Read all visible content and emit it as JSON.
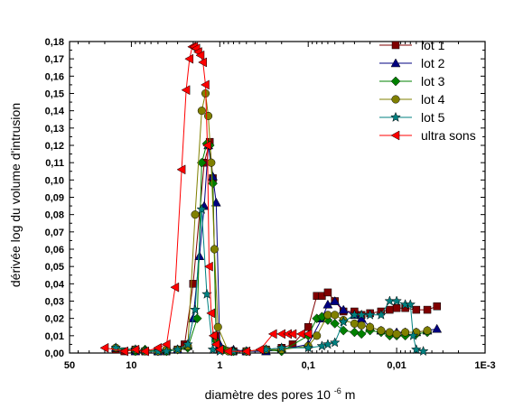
{
  "chart_data": {
    "type": "line",
    "xlabel": "diamètre des pores 10",
    "xlabel_sup": "-6",
    "xlabel_unit": " m",
    "ylabel": "dérivée log du volume d'intrusion",
    "x_scale": "log",
    "x_reversed": true,
    "xlim": [
      50,
      0.001
    ],
    "ylim": [
      0,
      0.18
    ],
    "x_ticks": [
      {
        "value": 50,
        "label": "50"
      },
      {
        "value": 10,
        "label": "10"
      },
      {
        "value": 1,
        "label": "1"
      },
      {
        "value": 0.1,
        "label": "0,1"
      },
      {
        "value": 0.01,
        "label": "0,01"
      },
      {
        "value": 0.001,
        "label": "1E-3"
      }
    ],
    "y_ticks": [
      "0,00",
      "0,01",
      "0,02",
      "0,03",
      "0,04",
      "0,05",
      "0,06",
      "0,07",
      "0,08",
      "0,09",
      "0,10",
      "0,11",
      "0,12",
      "0,13",
      "0,14",
      "0,15",
      "0,16",
      "0,17",
      "0,18"
    ],
    "grid": false,
    "legend_position": "top-right",
    "series": [
      {
        "name": "lot 1",
        "color": "#800000",
        "marker": "square",
        "x": [
          15,
          12,
          9,
          7,
          5,
          4,
          3,
          2.5,
          2,
          1.5,
          1.3,
          1.2,
          1.1,
          1.0,
          0.7,
          0.5,
          0.3,
          0.2,
          0.15,
          0.1,
          0.08,
          0.07,
          0.06,
          0.05,
          0.04,
          0.03,
          0.025,
          0.02,
          0.015,
          0.012,
          0.01,
          0.008,
          0.006,
          0.0045,
          0.0035
        ],
        "y": [
          0.002,
          0.001,
          0.002,
          0.001,
          0.001,
          0.001,
          0.002,
          0.005,
          0.04,
          0.11,
          0.122,
          0.101,
          0.01,
          0.002,
          0.001,
          0.001,
          0.002,
          0.003,
          0.005,
          0.015,
          0.033,
          0.033,
          0.035,
          0.03,
          0.024,
          0.024,
          0.022,
          0.023,
          0.024,
          0.025,
          0.026,
          0.026,
          0.025,
          0.025,
          0.027
        ]
      },
      {
        "name": "lot 2",
        "color": "#000080",
        "marker": "triangle-up",
        "x": [
          15,
          9,
          7,
          5,
          4,
          3,
          2.3,
          2,
          1.7,
          1.5,
          1.35,
          1.2,
          1.1,
          1.0,
          0.7,
          0.5,
          0.3,
          0.2,
          0.1,
          0.07,
          0.06,
          0.05,
          0.04,
          0.03,
          0.025,
          0.02,
          0.015,
          0.01,
          0.008,
          0.006,
          0.0045,
          0.0035
        ],
        "y": [
          0.003,
          0.001,
          0.002,
          0.001,
          0.002,
          0.002,
          0.004,
          0.02,
          0.056,
          0.085,
          0.12,
          0.102,
          0.087,
          0.005,
          0.002,
          0.001,
          0.001,
          0.002,
          0.005,
          0.02,
          0.028,
          0.03,
          0.025,
          0.022,
          0.02,
          0.015,
          0.013,
          0.012,
          0.012,
          0.012,
          0.013,
          0.014
        ]
      },
      {
        "name": "lot 3",
        "color": "#008000",
        "marker": "diamond",
        "x": [
          15,
          9,
          7,
          5,
          4,
          3,
          2.3,
          1.8,
          1.6,
          1.4,
          1.3,
          1.2,
          1.1,
          0.9,
          0.7,
          0.5,
          0.3,
          0.2,
          0.1,
          0.08,
          0.07,
          0.06,
          0.05,
          0.04,
          0.03,
          0.025,
          0.02,
          0.015,
          0.012,
          0.01,
          0.008,
          0.006,
          0.0045
        ],
        "y": [
          0.003,
          0.001,
          0.002,
          0.001,
          0.001,
          0.002,
          0.003,
          0.02,
          0.11,
          0.121,
          0.12,
          0.098,
          0.007,
          0.002,
          0.001,
          0.001,
          0.002,
          0.001,
          0.01,
          0.02,
          0.021,
          0.019,
          0.017,
          0.013,
          0.012,
          0.011,
          0.013,
          0.012,
          0.01,
          0.01,
          0.01,
          0.011,
          0.012
        ]
      },
      {
        "name": "lot 4",
        "color": "#808000",
        "marker": "circle",
        "x": [
          15,
          9,
          7,
          5,
          4,
          3,
          2.3,
          1.9,
          1.6,
          1.45,
          1.35,
          1.25,
          1.15,
          1.05,
          0.8,
          0.5,
          0.3,
          0.2,
          0.1,
          0.08,
          0.06,
          0.05,
          0.04,
          0.03,
          0.025,
          0.02,
          0.015,
          0.012,
          0.01,
          0.008,
          0.006,
          0.0045
        ],
        "y": [
          0.003,
          0.002,
          0.001,
          0.001,
          0.002,
          0.002,
          0.004,
          0.08,
          0.14,
          0.15,
          0.137,
          0.11,
          0.06,
          0.015,
          0.001,
          0.001,
          0.002,
          0.002,
          0.004,
          0.01,
          0.022,
          0.022,
          0.019,
          0.017,
          0.016,
          0.015,
          0.013,
          0.012,
          0.011,
          0.012,
          0.012,
          0.013
        ]
      },
      {
        "name": "lot 5",
        "color": "#008080",
        "marker": "star",
        "x": [
          15,
          9,
          7,
          5,
          4,
          3,
          2.3,
          1.9,
          1.6,
          1.4,
          1.2,
          1.0,
          0.7,
          0.5,
          0.3,
          0.2,
          0.1,
          0.07,
          0.06,
          0.05,
          0.04,
          0.03,
          0.025,
          0.02,
          0.015,
          0.012,
          0.01,
          0.008,
          0.007,
          0.0065,
          0.006,
          0.005
        ],
        "y": [
          0.003,
          0.002,
          0.001,
          0.001,
          0.001,
          0.002,
          0.005,
          0.025,
          0.083,
          0.034,
          0.002,
          0.001,
          0.001,
          0.001,
          0.002,
          0.003,
          0.003,
          0.004,
          0.005,
          0.006,
          0.018,
          0.022,
          0.022,
          0.022,
          0.022,
          0.03,
          0.03,
          0.028,
          0.028,
          0.01,
          0.002,
          0.001
        ]
      },
      {
        "name": "ultra sons",
        "color": "#ff0000",
        "marker": "triangle-left",
        "x": [
          20,
          12,
          9,
          7,
          5,
          4,
          3.2,
          2.7,
          2.4,
          2.2,
          2.05,
          1.95,
          1.85,
          1.75,
          1.65,
          1.55,
          1.45,
          1.38,
          1.32,
          1.25,
          1.18,
          1.1,
          1.0,
          0.8,
          0.5,
          0.35,
          0.25,
          0.2,
          0.17,
          0.15,
          0.12,
          0.1
        ],
        "y": [
          0.003,
          0.001,
          0.002,
          0.001,
          0.003,
          0.005,
          0.038,
          0.106,
          0.152,
          0.17,
          0.177,
          0.177,
          0.176,
          0.174,
          0.172,
          0.168,
          0.155,
          0.12,
          0.05,
          0.023,
          0.01,
          0.005,
          0.002,
          0.001,
          0.001,
          0.002,
          0.011,
          0.011,
          0.011,
          0.011,
          0.011,
          0.011
        ]
      }
    ]
  }
}
